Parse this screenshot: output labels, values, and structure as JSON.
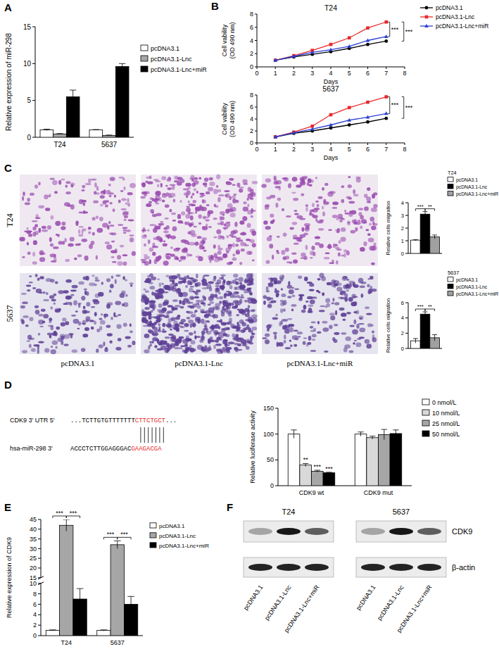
{
  "chart_data": [
    {
      "type": "bar",
      "panel": "A",
      "y_label": "Relative expression of miR-298",
      "categories": [
        "T24",
        "5637"
      ],
      "series": [
        {
          "name": "pcDNA3.1",
          "color": "#ffffff",
          "values": [
            1.0,
            1.0
          ],
          "errors": [
            0.1,
            0.05
          ]
        },
        {
          "name": "pcDNA3.1-Lnc",
          "color": "#a6a6a6",
          "values": [
            0.45,
            0.25
          ],
          "errors": [
            0.05,
            0.05
          ]
        },
        {
          "name": "pcDNA3.1-Lnc+miR",
          "color": "#000000",
          "values": [
            5.5,
            9.6
          ],
          "errors": [
            0.9,
            0.4
          ]
        }
      ],
      "ylim": [
        0,
        15
      ],
      "yticks": [
        0,
        5,
        10,
        15
      ],
      "legend": "right"
    },
    {
      "type": "line",
      "panel": "B",
      "title": "T24",
      "x_label": "Days",
      "y_label": [
        "Cell vability",
        "(OD 490 nm)"
      ],
      "x": [
        1,
        2,
        3,
        4,
        5,
        6,
        7
      ],
      "series": [
        {
          "name": "pcDNA3.1",
          "color": "#000000",
          "marker": "circle",
          "values": [
            1.0,
            1.5,
            1.9,
            2.3,
            2.8,
            3.4,
            3.9
          ]
        },
        {
          "name": "pcDNA3.1-Lnc",
          "color": "#e8292b",
          "marker": "square",
          "values": [
            1.0,
            1.7,
            2.5,
            3.4,
            4.4,
            5.9,
            6.8
          ]
        },
        {
          "name": "pcDNA3.1-Lnc+miR",
          "color": "#2b3fd4",
          "marker": "triangle",
          "values": [
            1.0,
            1.6,
            2.2,
            2.6,
            3.1,
            4.0,
            4.6
          ]
        }
      ],
      "xlim": [
        0,
        8
      ],
      "xticks": [
        0,
        1,
        2,
        3,
        4,
        5,
        6,
        7,
        8
      ],
      "ylim": [
        0,
        8
      ],
      "yticks": [
        0,
        2,
        4,
        6,
        8
      ],
      "legend": "top-right",
      "annotations": [
        {
          "text": "***",
          "series": [
            1,
            2
          ]
        },
        {
          "text": "***",
          "series": [
            1,
            0
          ]
        }
      ]
    },
    {
      "type": "line",
      "title": "5637",
      "x_label": "Days",
      "y_label": [
        "Cell vability",
        "(OD 490 nm)"
      ],
      "x": [
        1,
        2,
        3,
        4,
        5,
        6,
        7
      ],
      "series": [
        {
          "name": "pcDNA3.1",
          "color": "#000000",
          "marker": "circle",
          "values": [
            1.0,
            1.6,
            2.0,
            2.5,
            3.0,
            3.5,
            4.1
          ]
        },
        {
          "name": "pcDNA3.1-Lnc",
          "color": "#e8292b",
          "marker": "square",
          "values": [
            1.0,
            1.8,
            2.8,
            4.7,
            5.9,
            6.8,
            7.7
          ]
        },
        {
          "name": "pcDNA3.1-Lnc+miR",
          "color": "#2b3fd4",
          "marker": "triangle",
          "values": [
            1.0,
            1.7,
            2.3,
            3.0,
            3.8,
            4.3,
            4.9
          ]
        }
      ],
      "xlim": [
        0,
        8
      ],
      "xticks": [
        0,
        1,
        2,
        3,
        4,
        5,
        6,
        7,
        8
      ],
      "ylim": [
        0,
        8
      ],
      "yticks": [
        0,
        2,
        4,
        6,
        8
      ],
      "annotations": [
        {
          "text": "***",
          "series": [
            1,
            2
          ]
        },
        {
          "text": "***",
          "series": [
            1,
            0
          ]
        }
      ]
    },
    {
      "type": "bar",
      "title": "T24",
      "y_label": "Relative cells migration",
      "categories": [
        null
      ],
      "series": [
        {
          "name": "pcDNA3.1",
          "color": "#ffffff",
          "values": [
            1.05
          ],
          "errors": [
            0.03
          ]
        },
        {
          "name": "pcDNA3.1-Lnc",
          "color": "#000000",
          "values": [
            3.1
          ],
          "errors": [
            0.2
          ]
        },
        {
          "name": "pcDNA3.1-Lnc+miR",
          "color": "#a0a0a0",
          "values": [
            1.3
          ],
          "errors": [
            0.15
          ]
        }
      ],
      "ylim": [
        0,
        4
      ],
      "yticks": [
        0,
        1,
        2,
        3,
        4
      ],
      "legend": "top-right",
      "annotations": [
        {
          "text": "***",
          "category": 0,
          "series": [
            0,
            1
          ]
        },
        {
          "text": "**",
          "category": 0,
          "series": [
            1,
            2
          ]
        }
      ]
    },
    {
      "type": "bar",
      "title": "5637",
      "y_label": "Relative cells migration",
      "categories": [
        null
      ],
      "series": [
        {
          "name": "pcDNA3.1",
          "color": "#ffffff",
          "values": [
            1.0
          ],
          "errors": [
            0.3
          ]
        },
        {
          "name": "pcDNA3.1-Lnc",
          "color": "#000000",
          "values": [
            4.5
          ],
          "errors": [
            0.3
          ]
        },
        {
          "name": "pcDNA3.1-Lnc+miR",
          "color": "#a0a0a0",
          "values": [
            1.4
          ],
          "errors": [
            0.4
          ]
        }
      ],
      "ylim": [
        0,
        6
      ],
      "yticks": [
        0,
        2,
        4,
        6
      ],
      "legend": "top-right",
      "annotations": [
        {
          "text": "***",
          "category": 0,
          "series": [
            0,
            1
          ]
        },
        {
          "text": "**",
          "category": 0,
          "series": [
            1,
            2
          ]
        }
      ]
    },
    {
      "type": "bar",
      "y_label": "Relative luciferase activity",
      "categories": [
        "CDK9 wt",
        "CDK9 mut"
      ],
      "series": [
        {
          "name": "0 nmol/L",
          "color": "#ffffff",
          "values": [
            100,
            100
          ],
          "errors": [
            8,
            4
          ]
        },
        {
          "name": "10 nmol/L",
          "color": "#d9d9d9",
          "values": [
            40,
            93
          ],
          "errors": [
            3,
            3
          ]
        },
        {
          "name": "25 nmol/L",
          "color": "#a6a6a6",
          "values": [
            28,
            99
          ],
          "errors": [
            2,
            10
          ]
        },
        {
          "name": "50 nmol/L",
          "color": "#000000",
          "values": [
            25,
            101
          ],
          "errors": [
            1,
            7
          ]
        }
      ],
      "ylim": [
        0,
        150
      ],
      "yticks": [
        0,
        50,
        100,
        150
      ],
      "legend": "right",
      "annotations": [
        {
          "text": "**",
          "category": 0,
          "series": 1
        },
        {
          "text": "***",
          "category": 0,
          "series": 2
        },
        {
          "text": "***",
          "category": 0,
          "series": 3
        }
      ]
    },
    {
      "type": "bar",
      "panel": "E",
      "y_label": "Relative expression of CDK9",
      "categories": [
        "T24",
        "5637"
      ],
      "series": [
        {
          "name": "pcDNA3.1",
          "color": "#ffffff",
          "values": [
            1,
            1
          ],
          "errors": [
            0.1,
            0.1
          ]
        },
        {
          "name": "pcDNA3.1-Lnc",
          "color": "#a6a6a6",
          "values": [
            42,
            32
          ],
          "errors": [
            3,
            2
          ]
        },
        {
          "name": "pcDNA3.1-Lnc+miR",
          "color": "#000000",
          "values": [
            7,
            6
          ],
          "errors": [
            2,
            1.5
          ]
        }
      ],
      "ylim": [
        0,
        45
      ],
      "yticks": [
        0,
        2,
        4,
        6,
        8,
        10,
        15,
        20,
        25,
        30,
        35,
        40,
        45
      ],
      "legend": "right",
      "annotations": [
        {
          "text": "***",
          "category": 0,
          "series": [
            0,
            1
          ]
        },
        {
          "text": "***",
          "category": 0,
          "series": [
            1,
            2
          ]
        },
        {
          "text": "***",
          "category": 1,
          "series": [
            0,
            1
          ]
        },
        {
          "text": "***",
          "category": 1,
          "series": [
            1,
            2
          ]
        }
      ]
    }
  ],
  "images": {
    "panel": "C",
    "rows": [
      "T24",
      "5637"
    ],
    "columns": [
      "pcDNA3.1",
      "pcDNA3.1-Lnc",
      "pcDNA3.1-Lnc+miR"
    ]
  },
  "sequence": {
    "panel": "D",
    "target": {
      "label": "CDK9 3′ UTR 5′",
      "prefix": "...TCTTGTGTTTTTTT",
      "site": "CTTCTGCT",
      "suffix": "..."
    },
    "mirna": {
      "label": "hsa-miR-298 3′",
      "prefix": "ACCCTCTTGGAGGGAC",
      "site": "GAAGACGA"
    }
  },
  "blot": {
    "panel": "F",
    "groups": [
      "T24",
      "5637"
    ],
    "proteins": [
      "CDK9",
      "β-actin"
    ],
    "lanes": [
      "pcDNA3.1",
      "pcDNA3.1-Lnc",
      "pcDNA3.1-Lnc+miR"
    ]
  }
}
